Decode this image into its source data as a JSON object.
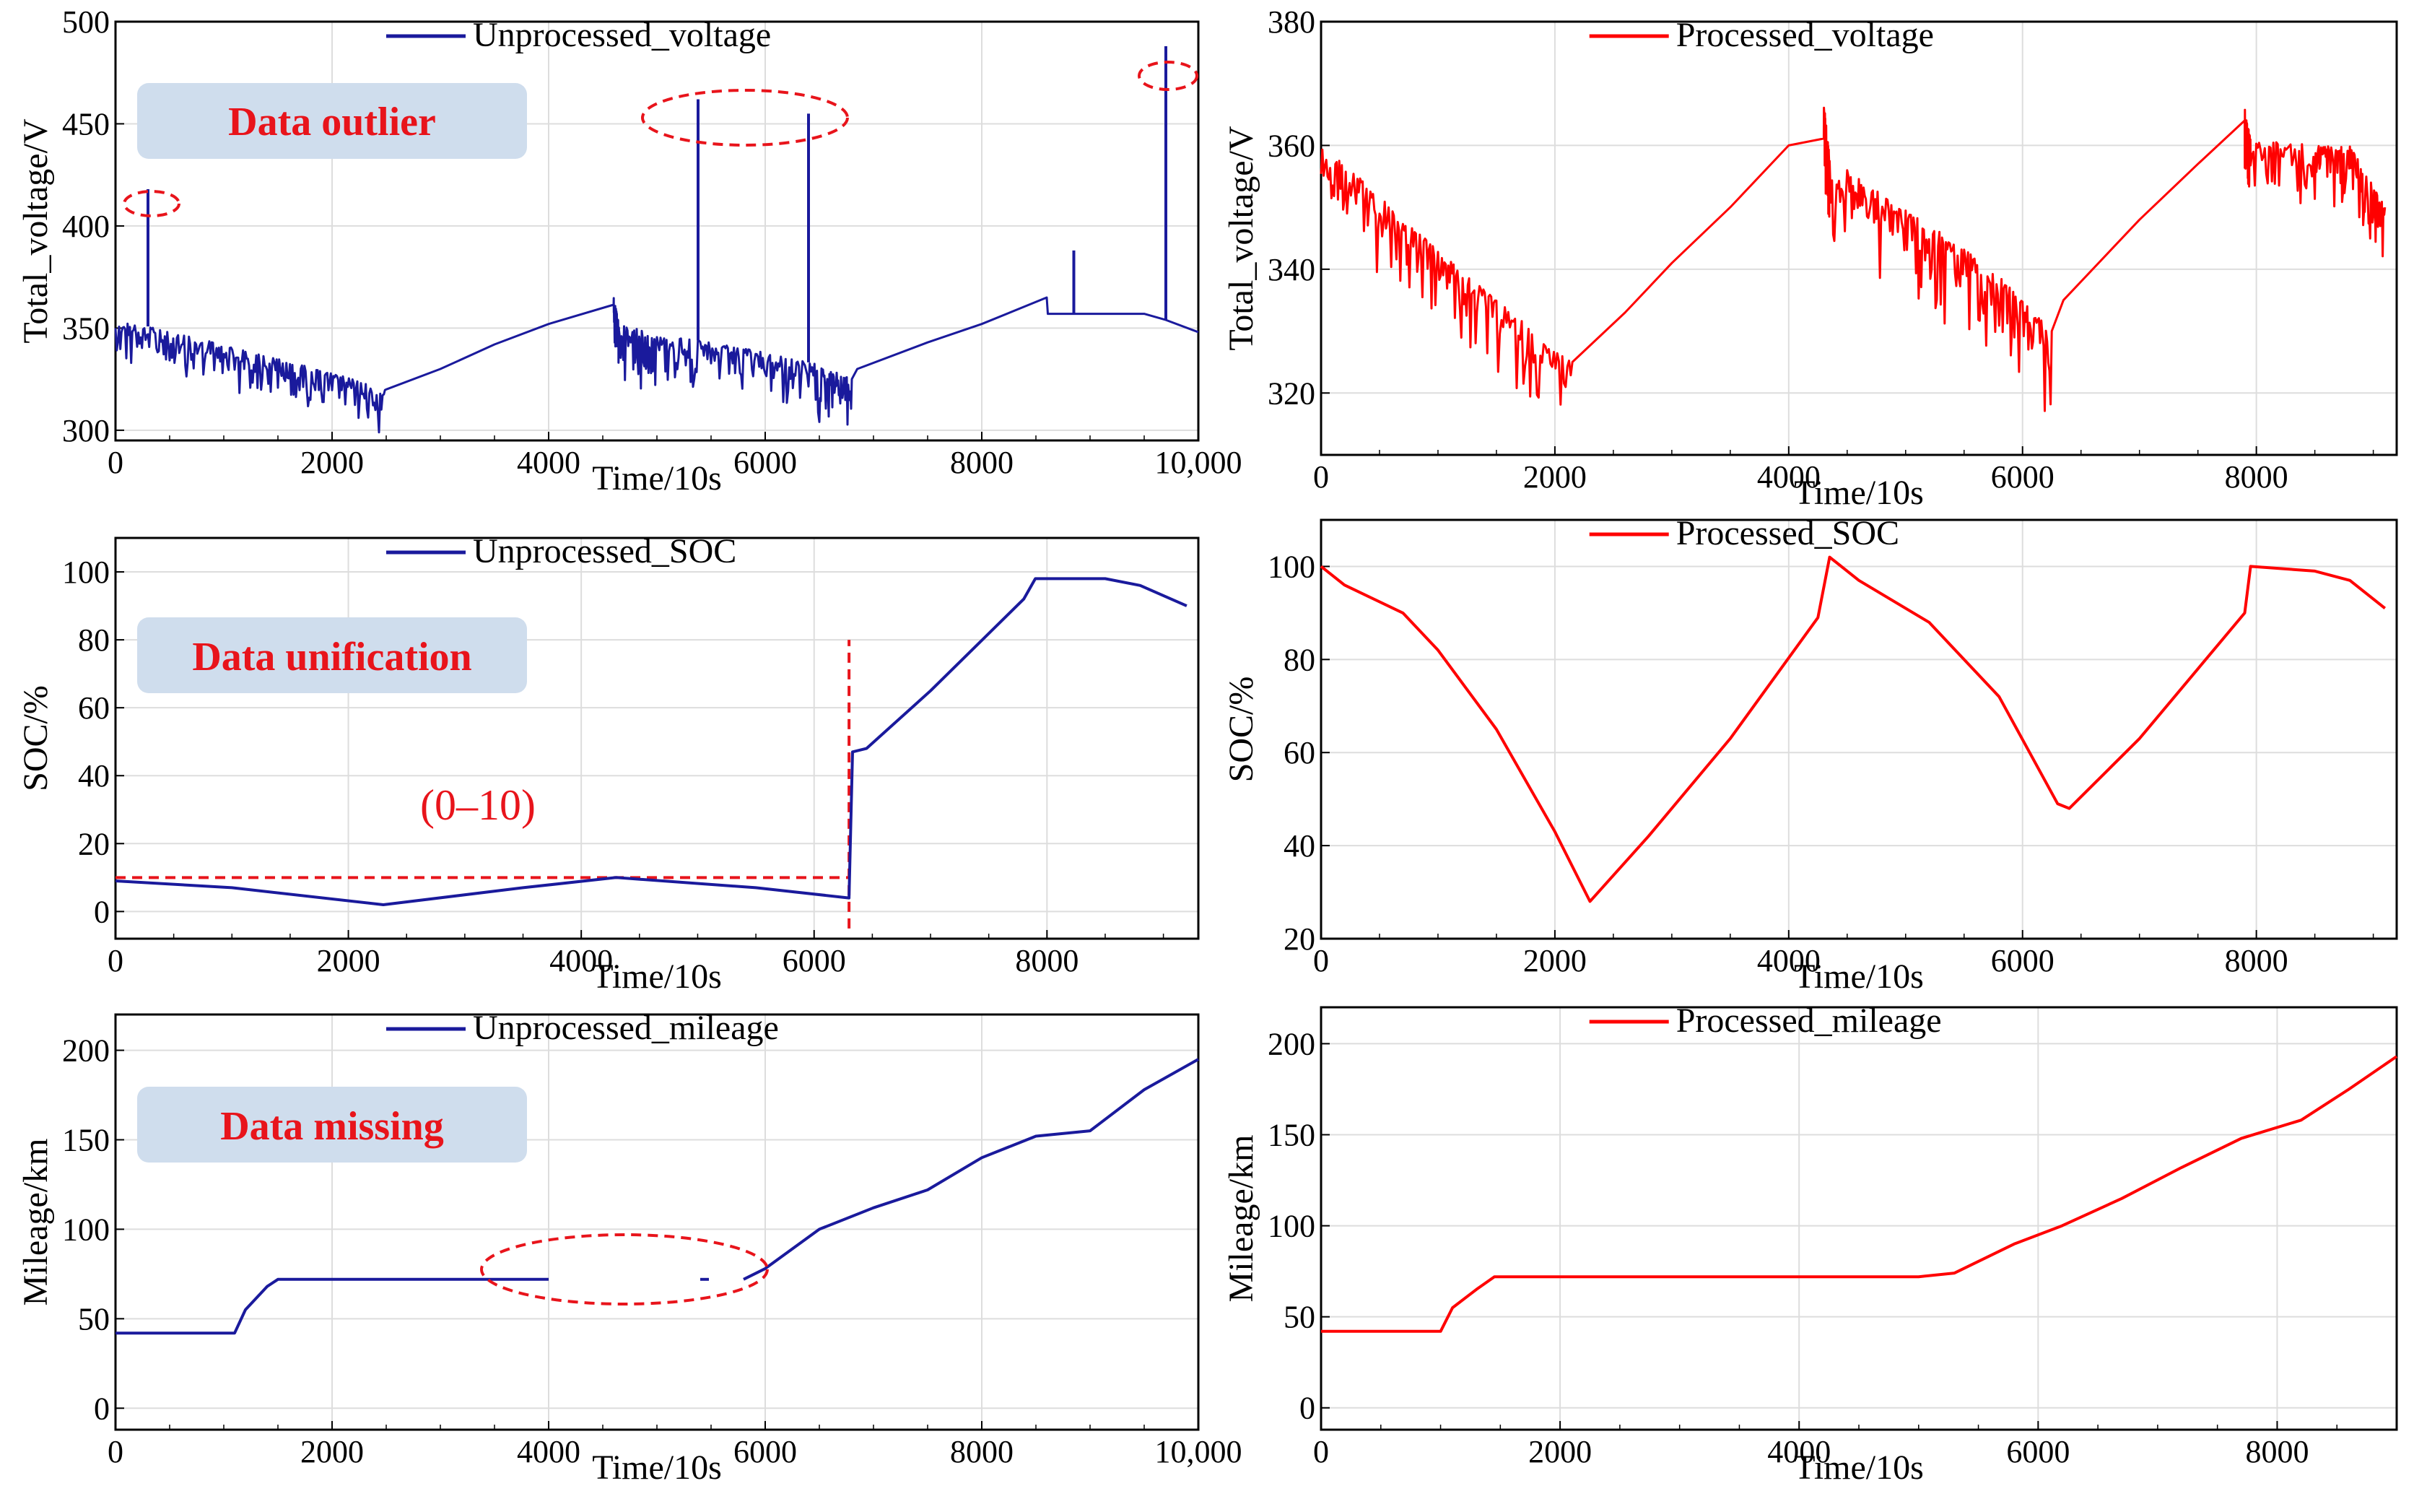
{
  "chart_data": [
    {
      "id": "unproc-voltage",
      "type": "line",
      "color": "#1a1a9c",
      "legend": "Unprocessed_voltage",
      "xlabel": "Time/10s",
      "ylabel": "Total_voltage/V",
      "xlim": [
        0,
        10000
      ],
      "ylim": [
        295,
        500
      ],
      "xticks": [
        0,
        2000,
        4000,
        6000,
        8000,
        10000
      ],
      "xtick_labels": [
        "0",
        "2000",
        "4000",
        "6000",
        "8000",
        "10,000"
      ],
      "yticks": [
        300,
        350,
        400,
        450,
        500
      ],
      "ytick_labels": [
        "300",
        "350",
        "400",
        "450",
        "500"
      ],
      "noise": {
        "pattern": "noisy",
        "segments": [
          [
            0,
            2500,
            25
          ],
          [
            4600,
            6800,
            30
          ]
        ]
      },
      "annotation": "Data outlier",
      "series": [
        {
          "name": "Unprocessed_voltage",
          "x": [
            0,
            500,
            1000,
            1500,
            2000,
            2500,
            3000,
            3500,
            4000,
            4600,
            4650,
            5000,
            5500,
            6000,
            6500,
            6800,
            6850,
            7500,
            8000,
            8600,
            8610,
            9000,
            9500,
            9700,
            10000
          ],
          "y": [
            355,
            348,
            342,
            335,
            328,
            320,
            330,
            342,
            352,
            365,
            352,
            347,
            343,
            338,
            332,
            325,
            330,
            343,
            352,
            365,
            357,
            357,
            357,
            354,
            348
          ]
        }
      ],
      "spikes": [
        {
          "x": 300,
          "y": 418
        },
        {
          "x": 5380,
          "y": 462
        },
        {
          "x": 6400,
          "y": 455
        },
        {
          "x": 8850,
          "y": 388
        },
        {
          "x": 9700,
          "y": 488
        }
      ]
    },
    {
      "id": "proc-voltage",
      "type": "line",
      "color": "#ff0000",
      "legend": "Processed_voltage",
      "xlabel": "Time/10s",
      "ylabel": "Total_voltage/V",
      "xlim": [
        0,
        9200
      ],
      "ylim": [
        310,
        380
      ],
      "xticks": [
        0,
        2000,
        4000,
        6000,
        8000
      ],
      "xtick_labels": [
        "0",
        "2000",
        "4000",
        "6000",
        "8000"
      ],
      "yticks": [
        320,
        340,
        360,
        380
      ],
      "ytick_labels": [
        "320",
        "340",
        "360",
        "380"
      ],
      "noise": {
        "pattern": "noisy",
        "segments": [
          [
            0,
            2150,
            14
          ],
          [
            4300,
            6250,
            16
          ],
          [
            7900,
            9200,
            12
          ]
        ]
      },
      "series": [
        {
          "name": "Processed_voltage",
          "x": [
            0,
            500,
            1000,
            1500,
            2150,
            2600,
            3000,
            3500,
            4000,
            4300,
            4350,
            4800,
            5300,
            5800,
            6250,
            6350,
            7000,
            7500,
            7900,
            7950,
            8500,
            8800,
            9100
          ],
          "y": [
            360,
            352,
            343,
            335,
            325,
            333,
            341,
            350,
            360,
            367,
            358,
            352,
            346,
            339,
            330,
            335,
            348,
            357,
            366,
            361,
            360,
            360,
            350
          ]
        }
      ]
    },
    {
      "id": "unproc-soc",
      "type": "line",
      "color": "#1a1a9c",
      "legend": "Unprocessed_SOC",
      "xlabel": "Time/10s",
      "ylabel": "SOC/%",
      "xlim": [
        0,
        9300
      ],
      "ylim": [
        -8,
        110
      ],
      "xticks": [
        0,
        2000,
        4000,
        6000,
        8000
      ],
      "xtick_labels": [
        "0",
        "2000",
        "4000",
        "6000",
        "8000"
      ],
      "yticks": [
        0,
        20,
        40,
        60,
        80,
        100
      ],
      "ytick_labels": [
        "0",
        "20",
        "40",
        "60",
        "80",
        "100"
      ],
      "annotation": "Data unification",
      "range_label": "(0–10)",
      "dashed": {
        "hline_y": 10,
        "hline_x": [
          0,
          6300
        ],
        "vline_x": 6300,
        "vline_y": [
          -5,
          80
        ]
      },
      "series": [
        {
          "name": "Unprocessed_SOC",
          "x": [
            0,
            1000,
            2300,
            3500,
            4300,
            5500,
            6300,
            6330,
            6450,
            7000,
            7800,
            7900,
            8000,
            8500,
            8800,
            9200
          ],
          "y": [
            9,
            7,
            2,
            7,
            10,
            7,
            4,
            47,
            48,
            65,
            92,
            98,
            98,
            98,
            96,
            90
          ]
        }
      ]
    },
    {
      "id": "proc-soc",
      "type": "line",
      "color": "#ff0000",
      "legend": "Processed_SOC",
      "xlabel": "Time/10s",
      "ylabel": "SOC/%",
      "xlim": [
        0,
        9200
      ],
      "ylim": [
        20,
        110
      ],
      "xticks": [
        0,
        2000,
        4000,
        6000,
        8000
      ],
      "xtick_labels": [
        "0",
        "2000",
        "4000",
        "6000",
        "8000"
      ],
      "yticks": [
        20,
        40,
        60,
        80,
        100
      ],
      "ytick_labels": [
        "20",
        "40",
        "60",
        "80",
        "100"
      ],
      "series": [
        {
          "name": "Processed_SOC",
          "x": [
            0,
            200,
            700,
            1000,
            1500,
            2000,
            2300,
            2800,
            3500,
            4250,
            4350,
            4600,
            5200,
            5800,
            6300,
            6400,
            7000,
            7900,
            7950,
            8500,
            8800,
            9100
          ],
          "y": [
            100,
            96,
            90,
            82,
            65,
            43,
            28,
            42,
            63,
            89,
            102,
            97,
            88,
            72,
            49,
            48,
            63,
            90,
            100,
            99,
            97,
            91
          ]
        }
      ]
    },
    {
      "id": "unproc-mileage",
      "type": "line",
      "color": "#1a1a9c",
      "legend": "Unprocessed_mileage",
      "xlabel": "Time/10s",
      "ylabel": "Mileage/km",
      "xlim": [
        0,
        10000
      ],
      "ylim": [
        -12,
        220
      ],
      "xticks": [
        0,
        2000,
        4000,
        6000,
        8000,
        10000
      ],
      "xtick_labels": [
        "0",
        "2000",
        "4000",
        "6000",
        "8000",
        "10,000"
      ],
      "yticks": [
        0,
        50,
        100,
        150,
        200
      ],
      "ytick_labels": [
        "0",
        "50",
        "100",
        "150",
        "200"
      ],
      "annotation": "Data missing",
      "series": [
        {
          "name": "Unprocessed_mileage",
          "x": [
            0,
            1100,
            1200,
            1400,
            1500,
            2000,
            3000,
            4000
          ],
          "y": [
            42,
            42,
            55,
            68,
            72,
            72,
            72,
            72
          ]
        },
        {
          "name": "Unprocessed_mileage",
          "x": [
            5400,
            5480
          ],
          "y": [
            72,
            72
          ]
        },
        {
          "name": "Unprocessed_mileage",
          "x": [
            5800,
            6000,
            6500,
            7000,
            7500,
            8000,
            8500,
            9000,
            9500,
            10000
          ],
          "y": [
            72,
            78,
            100,
            112,
            122,
            140,
            152,
            155,
            178,
            195
          ]
        }
      ]
    },
    {
      "id": "proc-mileage",
      "type": "line",
      "color": "#ff0000",
      "legend": "Processed_mileage",
      "xlabel": "Time/10s",
      "ylabel": "Mileage/km",
      "xlim": [
        0,
        9000
      ],
      "ylim": [
        -12,
        220
      ],
      "xticks": [
        0,
        2000,
        4000,
        6000,
        8000
      ],
      "xtick_labels": [
        "0",
        "2000",
        "4000",
        "6000",
        "8000"
      ],
      "yticks": [
        0,
        50,
        100,
        150,
        200
      ],
      "ytick_labels": [
        "0",
        "50",
        "100",
        "150",
        "200"
      ],
      "series": [
        {
          "name": "Processed_mileage",
          "x": [
            0,
            1000,
            1100,
            1300,
            1450,
            2000,
            3000,
            4000,
            5000,
            5300,
            5800,
            6200,
            6700,
            7200,
            7700,
            8200,
            8600,
            9000
          ],
          "y": [
            42,
            42,
            55,
            65,
            72,
            72,
            72,
            72,
            72,
            74,
            90,
            100,
            115,
            132,
            148,
            158,
            175,
            193
          ]
        }
      ]
    }
  ]
}
